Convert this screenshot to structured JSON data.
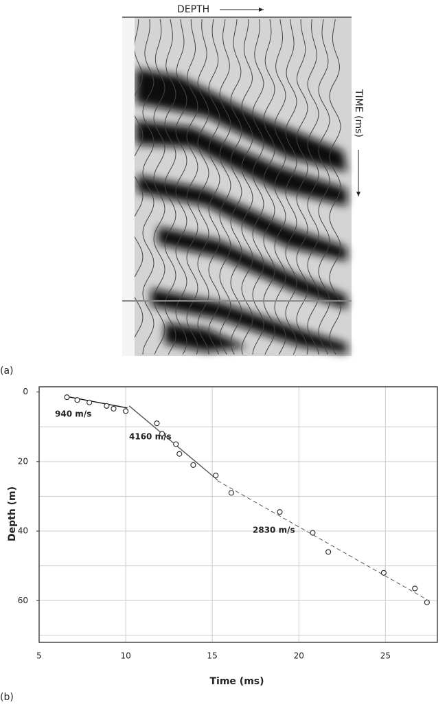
{
  "panel_a": {
    "label": "(a)",
    "depth_label": "DEPTH",
    "time_label": "TIME (ms)"
  },
  "panel_b_label": "(b)",
  "chart_data": {
    "type": "scatter",
    "x_label": "Time (ms)",
    "y_label": "Depth (m)",
    "x": [
      6.6,
      7.2,
      7.9,
      8.9,
      9.3,
      10.0,
      11.8,
      12.1,
      12.9,
      13.1,
      13.9,
      15.2,
      16.1,
      18.9,
      20.8,
      21.7,
      24.9,
      26.7,
      27.4
    ],
    "values": [
      1.5,
      2.3,
      3.0,
      4.0,
      4.8,
      5.5,
      9.0,
      12.0,
      15.0,
      17.8,
      21.0,
      24.0,
      29.0,
      34.5,
      40.5,
      46.0,
      52.0,
      56.5,
      60.5
    ],
    "color": "#222222",
    "fits": [
      {
        "name": "940 m/s",
        "x": [
          6.6,
          10.1
        ],
        "values": [
          1.3,
          4.6
        ],
        "color": "#111111",
        "dashed": false
      },
      {
        "name": "4160 m/s",
        "x": [
          10.2,
          15.3
        ],
        "values": [
          4.0,
          25.3
        ],
        "color": "#555555",
        "dashed": false
      },
      {
        "name": "2830 m/s",
        "x": [
          15.3,
          27.4
        ],
        "values": [
          25.5,
          59.7
        ],
        "color": "#555555",
        "dashed": true
      }
    ],
    "xlim": [
      5,
      28
    ],
    "xticks": [
      5,
      10,
      15,
      20,
      25
    ],
    "ylim": [
      -1.5,
      72
    ],
    "y_inverted": true,
    "yticks": [
      0,
      20,
      40,
      60
    ],
    "y_grid": [
      10,
      20,
      30,
      40,
      50,
      60,
      70
    ],
    "grid": true
  }
}
